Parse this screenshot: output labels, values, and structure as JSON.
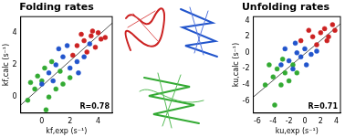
{
  "chart_data": [
    {
      "type": "scatter",
      "title": "Folding rates",
      "x_label": "kf,exp (s⁻¹)",
      "y_label": "kf,calc (s⁻¹)",
      "annotation": "R=0.78",
      "grid": false,
      "marker": "circle",
      "xlim": [
        -1.5,
        5
      ],
      "ylim": [
        -1,
        5
      ],
      "xticks": [
        0,
        2,
        4
      ],
      "yticks": [
        0,
        2,
        4
      ],
      "series": [
        {
          "color": "#cc2222",
          "x": [
            2.5,
            3,
            3.5,
            4,
            4.2,
            3.8,
            3.2,
            2.8,
            4.5,
            3.6,
            2.2
          ],
          "values": [
            3.2,
            3.5,
            3.8,
            4,
            3.6,
            3.1,
            2.8,
            3.9,
            3.7,
            4.1,
            2.6
          ]
        },
        {
          "color": "#2255cc",
          "x": [
            0.5,
            1,
            1.5,
            2,
            2.5,
            1.2,
            0,
            3,
            2.6,
            1.8,
            3.4,
            0.8
          ],
          "values": [
            1.5,
            2,
            2.5,
            1.8,
            2.2,
            3,
            0.8,
            2.5,
            1.5,
            3.2,
            3.3,
            1
          ]
        },
        {
          "color": "#33aa33",
          "x": [
            -0.5,
            0,
            0.5,
            1,
            -1,
            0.2,
            1.5,
            2,
            -0.3,
            0.7,
            1.3,
            -0.8,
            0.3
          ],
          "values": [
            0.5,
            1,
            0,
            0.5,
            -0.2,
            1.8,
            0.8,
            1.2,
            1.3,
            2.2,
            1.6,
            0.9,
            -0.8
          ]
        },
        {
          "type": "line",
          "color": "#555555",
          "x": [
            -1.5,
            5
          ],
          "values": [
            -0.5,
            4.6
          ]
        }
      ]
    },
    {
      "type": "scatter",
      "title": "Unfolding rates",
      "x_label": "ku,exp (s⁻¹)",
      "y_label": "ku,calc (s⁻¹)",
      "annotation": "R=0.71",
      "grid": false,
      "marker": "circle",
      "xlim": [
        -6.5,
        4.5
      ],
      "ylim": [
        -7.5,
        4.5
      ],
      "xticks": [
        -6,
        -4,
        -2,
        0,
        2,
        4
      ],
      "yticks": [
        -6,
        -4,
        -2,
        0,
        2,
        4
      ],
      "series": [
        {
          "color": "#cc2222",
          "x": [
            1,
            2,
            2.5,
            3,
            3.5,
            1.5,
            0.5,
            2.8,
            3.8,
            -0.5
          ],
          "values": [
            2,
            2.5,
            3,
            2,
            3.5,
            1,
            2.8,
            1.5,
            2.8,
            1.5
          ]
        },
        {
          "color": "#2255cc",
          "x": [
            -2,
            -1,
            0,
            -1.5,
            -3,
            -0.5,
            0.8,
            -2.5,
            1.5,
            -1.2,
            0.2
          ],
          "values": [
            -1,
            0,
            0.5,
            -2,
            -1.5,
            -0.5,
            -0.2,
            0.5,
            0.2,
            1.2,
            -1.5
          ]
        },
        {
          "color": "#33aa33",
          "x": [
            -4,
            -3.5,
            -3,
            -2.5,
            -4.5,
            -2,
            -3.8,
            -5,
            -1.5,
            -2.8,
            -1
          ],
          "values": [
            -3,
            -2,
            -4,
            -2.5,
            -1.5,
            -3.5,
            -6.5,
            -4,
            -1.5,
            -0.8,
            -2.5
          ]
        },
        {
          "type": "line",
          "color": "#555555",
          "x": [
            -6.5,
            4.5
          ],
          "values": [
            -5.5,
            3.6
          ]
        }
      ]
    }
  ]
}
